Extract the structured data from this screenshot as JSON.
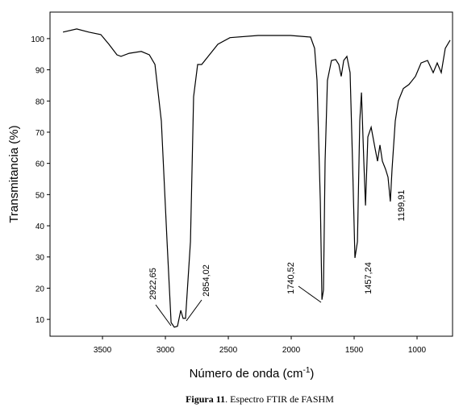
{
  "chart_data": {
    "type": "line",
    "ylabel": "Transmitancia (%)",
    "xlabel": "Número de onda (cm",
    "xlabel_sup": "-1",
    "xlabel_end": ")",
    "caption_bold": "Figura 11",
    "caption": ". Espectro  FTIR de FASHM",
    "annotations": [
      "2922,65",
      "2854,02",
      "1740,52",
      "1457,24",
      "1199,91"
    ],
    "color": "#000000",
    "xlim": [
      3917,
      718
    ],
    "ylim": [
      4.6,
      108.5
    ],
    "xticks": [
      3500,
      3000,
      2500,
      2000,
      1500,
      1000
    ],
    "yticks": [
      10,
      20,
      30,
      40,
      50,
      60,
      70,
      80,
      90,
      100
    ],
    "x": [
      3814,
      3705,
      3609,
      3513,
      3449,
      3385,
      3353,
      3288,
      3192,
      3128,
      3083,
      3032,
      2987,
      2955,
      2929,
      2904,
      2878,
      2859,
      2840,
      2801,
      2776,
      2744,
      2712,
      2660,
      2583,
      2487,
      2263,
      2006,
      1846,
      1814,
      1795,
      1769,
      1756,
      1744,
      1731,
      1712,
      1680,
      1647,
      1622,
      1603,
      1583,
      1558,
      1532,
      1513,
      1494,
      1474,
      1455,
      1442,
      1423,
      1410,
      1391,
      1365,
      1333,
      1314,
      1295,
      1276,
      1250,
      1231,
      1212,
      1199,
      1173,
      1148,
      1109,
      1064,
      1013,
      968,
      917,
      872,
      840,
      808,
      776,
      737
    ],
    "values": [
      102.1,
      103.1,
      102.1,
      101.3,
      98.2,
      94.8,
      94.3,
      95.3,
      95.9,
      94.8,
      91.7,
      73.6,
      34.9,
      9.0,
      7.5,
      7.8,
      12.9,
      10.3,
      10.3,
      34.9,
      81.4,
      91.7,
      91.7,
      94.3,
      98.2,
      100.3,
      101.0,
      101.0,
      100.5,
      96.9,
      86.6,
      47.8,
      16.3,
      19.4,
      60.7,
      86.6,
      93.0,
      93.3,
      91.7,
      87.9,
      93.0,
      94.3,
      89.1,
      60.7,
      29.7,
      34.9,
      73.6,
      82.7,
      60.7,
      46.5,
      68.5,
      71.6,
      64.6,
      60.7,
      65.9,
      60.7,
      58.1,
      55.6,
      47.8,
      58.1,
      73.6,
      80.1,
      84.0,
      85.3,
      87.9,
      92.2,
      93.0,
      89.1,
      92.2,
      89.1,
      96.9,
      99.5
    ]
  }
}
